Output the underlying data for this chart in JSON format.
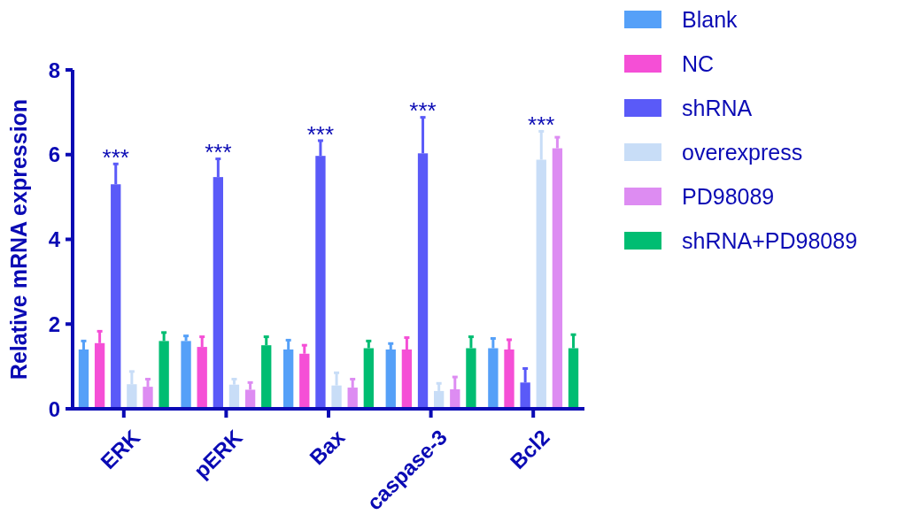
{
  "chart_data": {
    "type": "bar",
    "ylabel": "Relative mRNA expression",
    "categories": [
      "ERK",
      "pERK",
      "Bax",
      "caspase-3",
      "Bcl2"
    ],
    "series": [
      {
        "name": "Blank",
        "color": "#55a0f8",
        "values": [
          1.4,
          1.6,
          1.4,
          1.4,
          1.43
        ],
        "errors": [
          [
            1.4,
            1.6
          ],
          [
            1.6,
            1.72
          ],
          [
            1.4,
            1.62
          ],
          [
            1.4,
            1.54
          ],
          [
            1.43,
            1.66
          ]
        ]
      },
      {
        "name": "NC",
        "color": "#f54fd6",
        "values": [
          1.55,
          1.46,
          1.3,
          1.4,
          1.4
        ],
        "errors": [
          [
            1.55,
            1.83
          ],
          [
            1.46,
            1.7
          ],
          [
            1.3,
            1.5
          ],
          [
            1.4,
            1.68
          ],
          [
            1.4,
            1.63
          ]
        ]
      },
      {
        "name": "shRNA",
        "color": "#5a5af8",
        "values": [
          5.3,
          5.47,
          5.97,
          6.03,
          0.62
        ],
        "errors": [
          [
            5.3,
            5.78
          ],
          [
            5.47,
            5.9
          ],
          [
            5.97,
            6.33
          ],
          [
            6.03,
            6.88
          ],
          [
            0.62,
            0.95
          ]
        ]
      },
      {
        "name": "overexpress",
        "color": "#c8ddf7",
        "values": [
          0.58,
          0.57,
          0.55,
          0.42,
          5.88
        ],
        "errors": [
          [
            0.58,
            0.88
          ],
          [
            0.57,
            0.7
          ],
          [
            0.55,
            0.85
          ],
          [
            0.42,
            0.6
          ],
          [
            5.88,
            6.55
          ]
        ]
      },
      {
        "name": "PD98089",
        "color": "#dd8cf2",
        "values": [
          0.52,
          0.45,
          0.5,
          0.46,
          6.15
        ],
        "errors": [
          [
            0.52,
            0.7
          ],
          [
            0.45,
            0.62
          ],
          [
            0.5,
            0.7
          ],
          [
            0.46,
            0.75
          ],
          [
            6.15,
            6.41
          ]
        ]
      },
      {
        "name": "shRNA+PD98089",
        "color": "#00bd72",
        "values": [
          1.6,
          1.5,
          1.43,
          1.43,
          1.43
        ],
        "errors": [
          [
            1.6,
            1.8
          ],
          [
            1.5,
            1.7
          ],
          [
            1.43,
            1.6
          ],
          [
            1.43,
            1.7
          ],
          [
            1.43,
            1.75
          ]
        ]
      }
    ],
    "annotations": [
      {
        "text": "***",
        "x": "ERK",
        "y": 5.3
      },
      {
        "text": "***",
        "x": "pERK",
        "y": 5.47
      },
      {
        "text": "***",
        "x": "Bax",
        "y": 5.97
      },
      {
        "text": "***",
        "x": "caspase-3",
        "y": 6.03
      },
      {
        "text": "***",
        "x": "Bcl2",
        "y": 5.88
      }
    ],
    "ylim": [
      0,
      8
    ],
    "yticks": [
      0,
      2,
      4,
      6,
      8
    ],
    "grid": false,
    "legend": "top right"
  }
}
